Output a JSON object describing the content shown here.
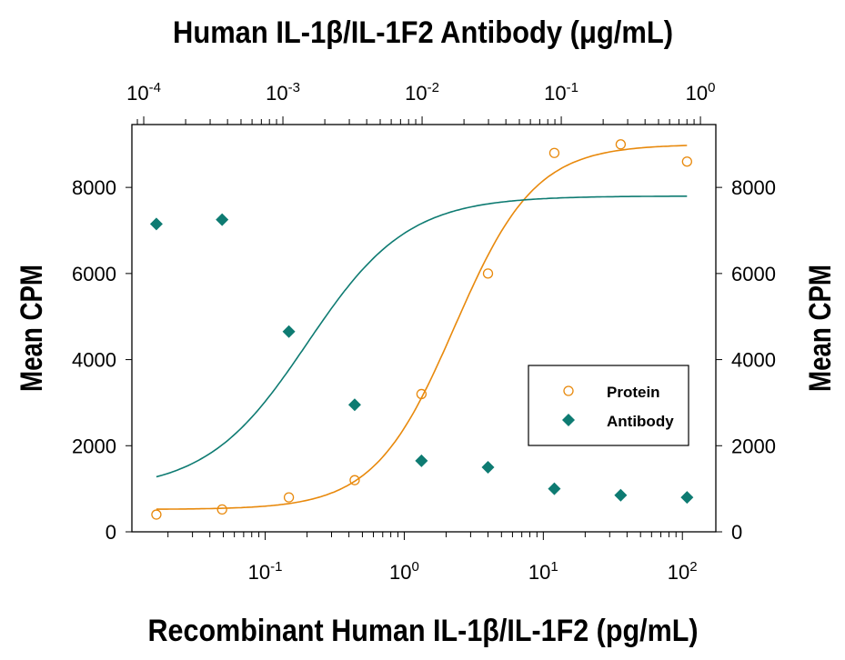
{
  "chart_data": {
    "type": "scatter",
    "title": "Human IL-1β/IL-1F2 Antibody (μg/mL)",
    "xlabel": "Recombinant Human IL-1β/IL-1F2 (pg/mL)",
    "ylabel": "Mean CPM",
    "ylabel_right": "Mean CPM",
    "x_scale": "log",
    "xlim": [
      0.011,
      174
    ],
    "ylim": [
      0,
      9460
    ],
    "x_ticks": [
      0.1,
      1,
      10,
      100
    ],
    "x_tick_labels": [
      {
        "base": "10",
        "exp": "-1"
      },
      {
        "base": "10",
        "exp": "0"
      },
      {
        "base": "10",
        "exp": "1"
      },
      {
        "base": "10",
        "exp": "2"
      }
    ],
    "top_axis": {
      "scale": "log",
      "lim": [
        8.22e-05,
        1.29
      ],
      "ticks": [
        0.0001,
        0.001,
        0.01,
        0.1,
        1
      ],
      "tick_labels": [
        {
          "base": "10",
          "exp": "-4"
        },
        {
          "base": "10",
          "exp": "-3"
        },
        {
          "base": "10",
          "exp": "-2"
        },
        {
          "base": "10",
          "exp": "-1"
        },
        {
          "base": "10",
          "exp": "0"
        }
      ]
    },
    "y_ticks": [
      0,
      2000,
      4000,
      6000,
      8000
    ],
    "y_tick_labels": [
      "0",
      "2000",
      "4000",
      "6000",
      "8000"
    ],
    "grid": false,
    "legend_position": "center-right",
    "series": [
      {
        "name": "Protein",
        "marker": "open-circle",
        "color": "#E8890C",
        "x": [
          0.0165,
          0.049,
          0.148,
          0.44,
          1.33,
          4.0,
          12,
          36,
          108
        ],
        "y": [
          400,
          520,
          800,
          1200,
          3200,
          6000,
          8800,
          9000,
          8600
        ],
        "fit": {
          "bottom": 520,
          "top": 9000,
          "ec50": 2.3,
          "hill": 1.5
        }
      },
      {
        "name": "Antibody",
        "marker": "filled-diamond",
        "color": "#0E7B72",
        "x": [
          0.0165,
          0.049,
          0.148,
          0.44,
          1.33,
          4.0,
          12,
          36,
          108
        ],
        "y": [
          7150,
          7250,
          4650,
          2950,
          1650,
          1500,
          1000,
          850,
          800
        ],
        "fit": {
          "bottom": 950,
          "top": 7800,
          "ec50": 0.2,
          "hill": 1.2
        }
      }
    ]
  }
}
